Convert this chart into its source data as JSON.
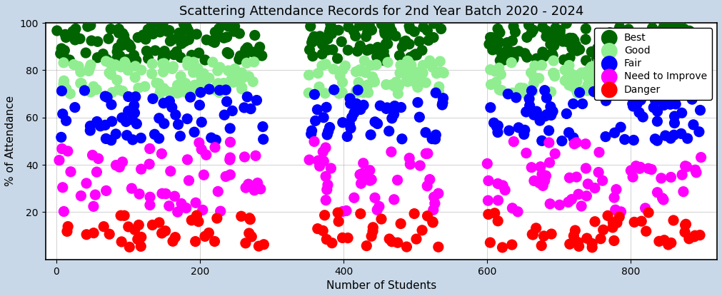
{
  "title": "Scattering Attendance Records for 2nd Year Batch 2020 - 2024",
  "xlabel": "Number of Students",
  "ylabel": "% of Attendance",
  "xlim": [
    -15,
    920
  ],
  "ylim": [
    0,
    100
  ],
  "xticks": [
    0,
    200,
    400,
    600,
    800
  ],
  "yticks": [
    20,
    40,
    60,
    80,
    100
  ],
  "grid": true,
  "categories": [
    {
      "label": "Best",
      "color": "#006400",
      "y_min": 84,
      "y_max": 100,
      "n": 300,
      "seed": 10
    },
    {
      "label": "Good",
      "color": "#90EE90",
      "y_min": 70,
      "y_max": 84,
      "n": 280,
      "seed": 20
    },
    {
      "label": "Fair",
      "color": "#0000FF",
      "y_min": 50,
      "y_max": 72,
      "n": 180,
      "seed": 30
    },
    {
      "label": "Need to Improve",
      "color": "#FF00FF",
      "y_min": 20,
      "y_max": 50,
      "n": 160,
      "seed": 40
    },
    {
      "label": "Danger",
      "color": "#FF0000",
      "y_min": 5,
      "y_max": 20,
      "n": 110,
      "seed": 50
    }
  ],
  "marker_size": 120,
  "title_fontsize": 13,
  "label_fontsize": 11,
  "legend_fontsize": 10,
  "fig_facecolor": "#c8d8e8",
  "plot_facecolor": "#ffffff"
}
